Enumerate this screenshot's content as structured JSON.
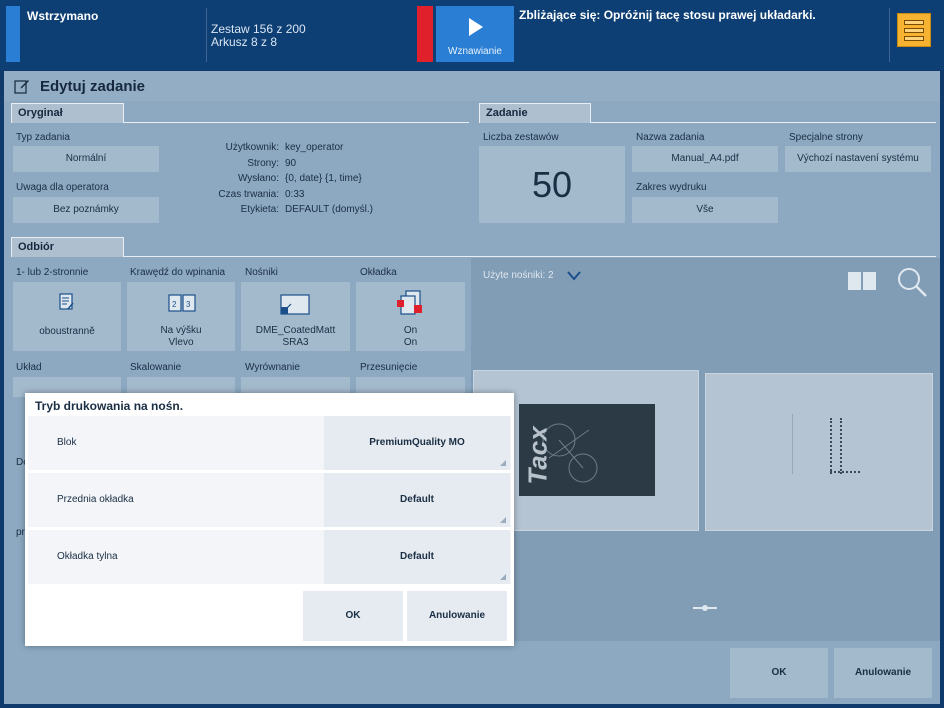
{
  "topbar": {
    "status": "Wstrzymano",
    "set_line": "Zestaw 156 z 200",
    "sheet_line": "Arkusz 8 z 8",
    "resume_label": "Wznawianie",
    "upcoming": "Zbliżające się: Opróżnij tacę stosu prawej układarki."
  },
  "page": {
    "title": "Edytuj zadanie"
  },
  "original": {
    "tab": "Oryginał",
    "job_type_label": "Typ zadania",
    "job_type_value": "Normální",
    "operator_note_label": "Uwaga dla operatora",
    "operator_note_value": "Bez poznámky",
    "info": [
      {
        "k": "Użytkownik:",
        "v": "key_operator"
      },
      {
        "k": "Strony:",
        "v": "90"
      },
      {
        "k": "Wysłano:",
        "v": "{0, date} {1, time}"
      },
      {
        "k": "Czas trwania:",
        "v": "0:33"
      },
      {
        "k": "Etykieta:",
        "v": "DEFAULT (domyśl.)"
      }
    ]
  },
  "job": {
    "tab": "Zadanie",
    "sets_label": "Liczba zestawów",
    "sets_value": "50",
    "name_label": "Nazwa zadania",
    "name_value": "Manual_A4.pdf",
    "range_label": "Zakres wydruku",
    "range_value": "Vše",
    "special_label": "Specjalne strony",
    "special_value": "Výchozí nastavení systému"
  },
  "output": {
    "tab": "Odbiór",
    "sides_label": "1- lub 2-stronnie",
    "sides_value": "oboustranně",
    "binding_label": "Krawędź do wpinania",
    "binding_value_1": "Na výšku",
    "binding_value_2": "Vlevo",
    "media_label": "Nośniki",
    "media_value_1": "DME_CoatedMatt",
    "media_value_2": "SRA3",
    "cover_label": "Okładka",
    "cover_value_1": "On",
    "cover_value_2": "On",
    "layout_label": "Układ",
    "scaling_label": "Skalowanie",
    "align_label": "Wyrównanie",
    "shift_label": "Przesunięcie",
    "partial_left_1": "Do",
    "partial_left_2": "pr"
  },
  "preview": {
    "used_media": "Użyte nośniki: 2",
    "cover_brand": "Tacx"
  },
  "dialog": {
    "title": "Tryb drukowania na nośn.",
    "rows": [
      {
        "label": "Blok",
        "value": "PremiumQuality MO"
      },
      {
        "label": "Przednia okładka",
        "value": "Default"
      },
      {
        "label": "Okładka tylna",
        "value": "Default"
      }
    ],
    "ok": "OK",
    "cancel": "Anulowanie"
  },
  "footer": {
    "ok": "OK",
    "cancel": "Anulowanie"
  },
  "colors": {
    "accent_blue": "#2a7fd4",
    "alert_red": "#e0202a",
    "stacker_orange": "#f5b331",
    "topbar": "#0d3f74"
  }
}
